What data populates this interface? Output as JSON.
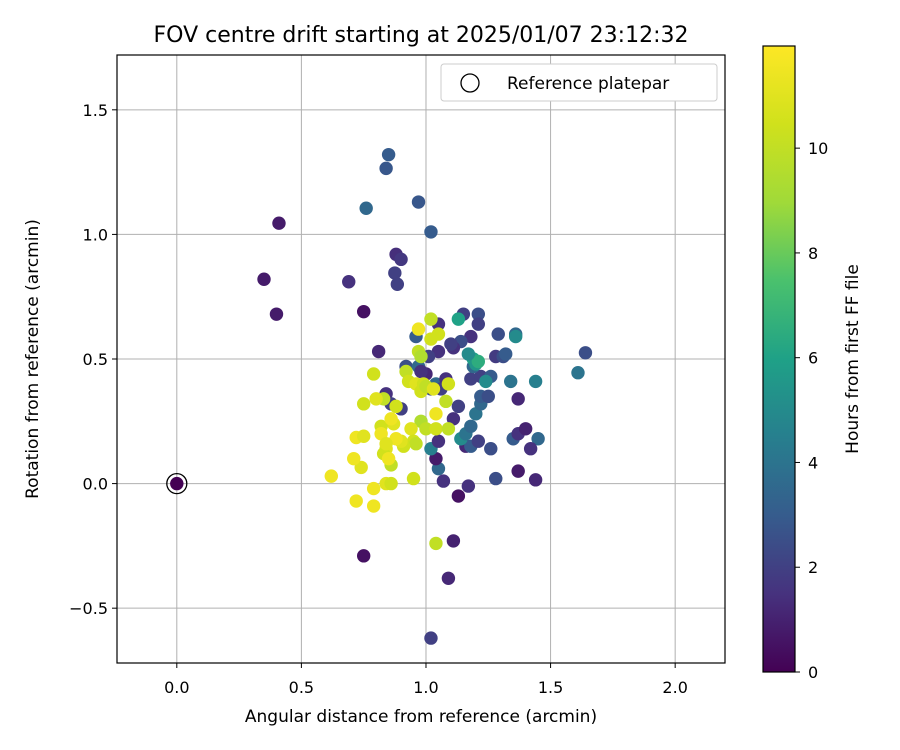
{
  "chart_data": {
    "type": "scatter",
    "title": "FOV centre drift starting at 2025/01/07 23:12:32",
    "xlabel": "Angular distance from reference (arcmin)",
    "ylabel": "Rotation from reference (arcmin)",
    "colorbar_label": "Hours from first FF file",
    "xlim": [
      -0.24,
      2.2
    ],
    "ylim": [
      -0.72,
      1.72
    ],
    "clim": [
      0,
      11.95
    ],
    "xticks": [
      0.0,
      0.5,
      1.0,
      1.5,
      2.0
    ],
    "yticks": [
      -0.5,
      0.0,
      0.5,
      1.0,
      1.5
    ],
    "colorbar_ticks": [
      0,
      2,
      4,
      6,
      8,
      10
    ],
    "xtick_labels": [
      "0.0",
      "0.5",
      "1.0",
      "1.5",
      "2.0"
    ],
    "ytick_labels": [
      "−0.5",
      "0.0",
      "0.5",
      "1.0",
      "1.5"
    ],
    "colorbar_tick_labels": [
      "0",
      "2",
      "4",
      "6",
      "8",
      "10"
    ],
    "grid": true,
    "legend_position": "top-right",
    "colormap": "viridis",
    "reference": {
      "label": "Reference platepar",
      "x": 0.0,
      "y": 0.0,
      "hours": 0.0
    },
    "points": [
      [
        0.41,
        1.045,
        0.8
      ],
      [
        0.35,
        0.82,
        0.8
      ],
      [
        0.4,
        0.68,
        0.8
      ],
      [
        0.75,
        0.69,
        0.5
      ],
      [
        0.69,
        0.81,
        1.5
      ],
      [
        0.88,
        0.92,
        1.4
      ],
      [
        0.9,
        0.9,
        1.7
      ],
      [
        0.875,
        0.845,
        2.0
      ],
      [
        0.885,
        0.8,
        2.0
      ],
      [
        0.85,
        1.32,
        3.0
      ],
      [
        0.84,
        1.265,
        2.8
      ],
      [
        0.76,
        1.105,
        3.5
      ],
      [
        0.97,
        1.13,
        2.8
      ],
      [
        1.02,
        1.01,
        3.0
      ],
      [
        0.81,
        0.53,
        1.2
      ],
      [
        0.75,
        -0.29,
        0.5
      ],
      [
        1.02,
        -0.62,
        2.0
      ],
      [
        1.09,
        -0.38,
        1.2
      ],
      [
        1.11,
        -0.23,
        1.0
      ],
      [
        1.13,
        -0.05,
        0.5
      ],
      [
        1.17,
        -0.01,
        1.5
      ],
      [
        1.28,
        0.02,
        2.5
      ],
      [
        1.37,
        0.05,
        0.8
      ],
      [
        1.44,
        0.015,
        1.2
      ],
      [
        1.07,
        0.01,
        1.5
      ],
      [
        1.05,
        0.06,
        3.5
      ],
      [
        1.04,
        0.1,
        0.8
      ],
      [
        1.02,
        0.14,
        4.5
      ],
      [
        1.05,
        0.17,
        1.5
      ],
      [
        1.16,
        0.15,
        1.2
      ],
      [
        1.18,
        0.15,
        3.0
      ],
      [
        1.21,
        0.17,
        2.0
      ],
      [
        1.14,
        0.18,
        5.0
      ],
      [
        1.16,
        0.2,
        4.0
      ],
      [
        1.18,
        0.23,
        3.5
      ],
      [
        1.26,
        0.14,
        2.5
      ],
      [
        1.35,
        0.18,
        3.0
      ],
      [
        1.37,
        0.2,
        1.5
      ],
      [
        1.4,
        0.22,
        1.0
      ],
      [
        1.45,
        0.18,
        3.5
      ],
      [
        1.42,
        0.14,
        1.5
      ],
      [
        1.11,
        0.26,
        1.5
      ],
      [
        1.13,
        0.31,
        2.0
      ],
      [
        1.2,
        0.28,
        4.0
      ],
      [
        1.22,
        0.32,
        3.5
      ],
      [
        1.22,
        0.35,
        3.0
      ],
      [
        1.25,
        0.35,
        2.5
      ],
      [
        1.37,
        0.34,
        1.2
      ],
      [
        1.02,
        0.38,
        2.5
      ],
      [
        1.04,
        0.4,
        3.5
      ],
      [
        1.06,
        0.38,
        2.0
      ],
      [
        1.08,
        0.42,
        1.5
      ],
      [
        1.0,
        0.44,
        1.2
      ],
      [
        1.18,
        0.42,
        2.0
      ],
      [
        1.22,
        0.43,
        2.0
      ],
      [
        1.26,
        0.43,
        3.0
      ],
      [
        1.24,
        0.41,
        5.0
      ],
      [
        1.34,
        0.41,
        4.0
      ],
      [
        1.44,
        0.41,
        4.5
      ],
      [
        1.19,
        0.47,
        3.5
      ],
      [
        1.19,
        0.5,
        6.0
      ],
      [
        1.2,
        0.48,
        5.5
      ],
      [
        1.21,
        0.49,
        6.5
      ],
      [
        1.17,
        0.52,
        5.0
      ],
      [
        1.28,
        0.51,
        1.8
      ],
      [
        1.31,
        0.51,
        2.5
      ],
      [
        1.32,
        0.52,
        3.0
      ],
      [
        1.29,
        0.6,
        2.5
      ],
      [
        1.36,
        0.6,
        3.5
      ],
      [
        1.36,
        0.59,
        5.0
      ],
      [
        1.15,
        0.68,
        2.0
      ],
      [
        1.21,
        0.68,
        2.5
      ],
      [
        1.21,
        0.64,
        2.0
      ],
      [
        1.13,
        0.66,
        6.0
      ],
      [
        1.18,
        0.59,
        1.5
      ],
      [
        1.14,
        0.57,
        2.5
      ],
      [
        1.11,
        0.545,
        1.5
      ],
      [
        1.05,
        0.53,
        1.5
      ],
      [
        1.01,
        0.51,
        2.0
      ],
      [
        0.96,
        0.59,
        3.0
      ],
      [
        1.05,
        0.64,
        1.5
      ],
      [
        1.1,
        0.56,
        2.0
      ],
      [
        1.61,
        0.445,
        4.0
      ],
      [
        1.64,
        0.525,
        2.5
      ],
      [
        0.92,
        0.47,
        2.5
      ],
      [
        0.97,
        0.47,
        3.5
      ],
      [
        0.84,
        0.36,
        1.5
      ],
      [
        0.86,
        0.32,
        2.0
      ],
      [
        0.9,
        0.3,
        2.0
      ],
      [
        0.98,
        0.45,
        1.5
      ],
      [
        0.92,
        0.45,
        10.0
      ],
      [
        0.93,
        0.41,
        10.5
      ],
      [
        0.96,
        0.4,
        11.0
      ],
      [
        0.98,
        0.37,
        10.5
      ],
      [
        0.99,
        0.4,
        10.5
      ],
      [
        1.0,
        0.39,
        10.0
      ],
      [
        0.97,
        0.53,
        10.0
      ],
      [
        0.98,
        0.51,
        9.5
      ],
      [
        0.97,
        0.62,
        11.5
      ],
      [
        1.02,
        0.66,
        10.0
      ],
      [
        1.05,
        0.6,
        10.5
      ],
      [
        1.02,
        0.58,
        10.5
      ],
      [
        1.03,
        0.38,
        11.0
      ],
      [
        1.08,
        0.33,
        10.0
      ],
      [
        1.09,
        0.4,
        10.5
      ],
      [
        1.04,
        0.28,
        11.5
      ],
      [
        0.98,
        0.25,
        9.5
      ],
      [
        1.0,
        0.22,
        10.0
      ],
      [
        1.04,
        0.22,
        10.5
      ],
      [
        1.09,
        0.22,
        10.0
      ],
      [
        0.94,
        0.22,
        11.0
      ],
      [
        0.95,
        0.17,
        10.5
      ],
      [
        0.96,
        0.16,
        10.0
      ],
      [
        0.91,
        0.15,
        10.5
      ],
      [
        0.9,
        0.17,
        11.0
      ],
      [
        0.88,
        0.18,
        11.5
      ],
      [
        0.87,
        0.24,
        11.0
      ],
      [
        0.88,
        0.31,
        10.5
      ],
      [
        0.83,
        0.34,
        10.0
      ],
      [
        0.8,
        0.34,
        11.0
      ],
      [
        0.79,
        0.44,
        10.5
      ],
      [
        0.75,
        0.32,
        10.5
      ],
      [
        0.82,
        0.23,
        10.5
      ],
      [
        0.86,
        0.26,
        11.5
      ],
      [
        0.82,
        0.2,
        11.5
      ],
      [
        0.84,
        0.14,
        11.0
      ],
      [
        0.83,
        0.12,
        10.5
      ],
      [
        0.84,
        0.16,
        11.0
      ],
      [
        0.86,
        0.075,
        10.0
      ],
      [
        0.85,
        0.1,
        11.5
      ],
      [
        0.84,
        0.0,
        11.0
      ],
      [
        0.86,
        0.0,
        10.5
      ],
      [
        0.95,
        0.02,
        10.5
      ],
      [
        0.79,
        -0.02,
        11.5
      ],
      [
        0.79,
        -0.09,
        11.5
      ],
      [
        0.72,
        -0.07,
        11.5
      ],
      [
        0.74,
        0.065,
        11.0
      ],
      [
        0.71,
        0.1,
        11.5
      ],
      [
        0.72,
        0.185,
        11.5
      ],
      [
        0.75,
        0.19,
        11.0
      ],
      [
        0.62,
        0.03,
        11.5
      ],
      [
        1.04,
        -0.24,
        10.0
      ]
    ]
  }
}
